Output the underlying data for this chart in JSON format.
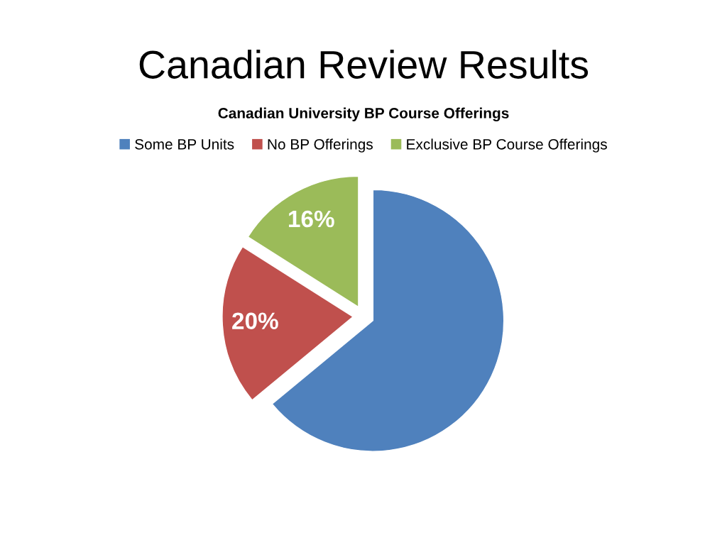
{
  "chart_data": {
    "type": "pie",
    "title": "Canadian Review Results",
    "subtitle": "Canadian University BP Course Offerings",
    "categories": [
      "Some BP Units",
      "No BP Offerings",
      "Exclusive BP Course Offerings"
    ],
    "values": [
      64,
      20,
      16
    ],
    "colors": [
      "#4f81bd",
      "#c0504d",
      "#9bbb59"
    ],
    "value_labels": [
      null,
      "20%",
      "16%"
    ],
    "legend": "top"
  }
}
